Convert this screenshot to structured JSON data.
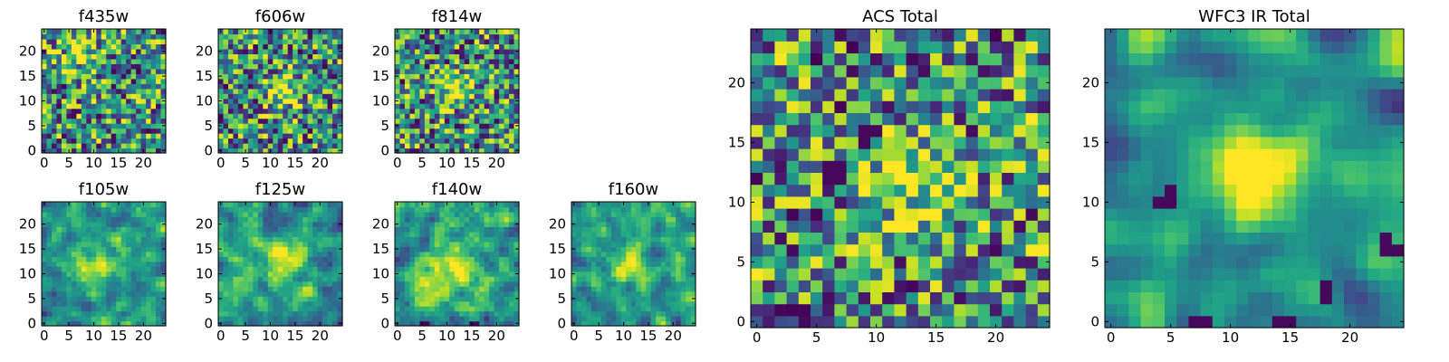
{
  "chart_data": [
    {
      "type": "heatmap",
      "title": "f435w",
      "grid": [
        25,
        25
      ],
      "colormap": "viridis",
      "seed": 11,
      "smooth": 0,
      "blob": {
        "cx": 8,
        "cy": 19,
        "amp": 0.25,
        "sigma": 3
      },
      "darkSpots": [],
      "xticks": [
        "0",
        "5",
        "10",
        "15",
        "20"
      ],
      "yticks": [
        "0",
        "5",
        "10",
        "15",
        "20"
      ]
    },
    {
      "type": "heatmap",
      "title": "f606w",
      "grid": [
        25,
        25
      ],
      "colormap": "viridis",
      "seed": 23,
      "smooth": 0,
      "blob": {
        "cx": 12.5,
        "cy": 12,
        "amp": 0.55,
        "sigma": 2.2
      },
      "darkSpots": [],
      "xticks": [
        "0",
        "5",
        "10",
        "15",
        "20"
      ],
      "yticks": [
        "0",
        "5",
        "10",
        "15",
        "20"
      ]
    },
    {
      "type": "heatmap",
      "title": "f814w",
      "grid": [
        25,
        25
      ],
      "colormap": "viridis",
      "seed": 37,
      "smooth": 0,
      "blob": {
        "cx": 12,
        "cy": 12.5,
        "amp": 0.55,
        "sigma": 2.2
      },
      "darkSpots": [],
      "xticks": [
        "0",
        "5",
        "10",
        "15",
        "20"
      ],
      "yticks": [
        "0",
        "5",
        "10",
        "15",
        "20"
      ]
    },
    {
      "type": "heatmap",
      "title": "f105w",
      "grid": [
        25,
        25
      ],
      "colormap": "viridis",
      "seed": 41,
      "smooth": 1,
      "blob": {
        "cx": 11,
        "cy": 12,
        "amp": 0.35,
        "sigma": 4
      },
      "darkSpots": [],
      "xticks": [
        "0",
        "5",
        "10",
        "15",
        "20"
      ],
      "yticks": [
        "0",
        "5",
        "10",
        "15",
        "20"
      ]
    },
    {
      "type": "heatmap",
      "title": "f125w",
      "grid": [
        25,
        25
      ],
      "colormap": "viridis",
      "seed": 53,
      "smooth": 1,
      "blob": {
        "cx": 13,
        "cy": 12.5,
        "amp": 0.4,
        "sigma": 3
      },
      "darkSpots": [],
      "xticks": [
        "0",
        "5",
        "10",
        "15",
        "20"
      ],
      "yticks": [
        "0",
        "5",
        "10",
        "15",
        "20"
      ]
    },
    {
      "type": "heatmap",
      "title": "f140w",
      "grid": [
        25,
        25
      ],
      "colormap": "viridis",
      "seed": 67,
      "smooth": 1,
      "blob": {
        "cx": 10,
        "cy": 11,
        "amp": 0.4,
        "sigma": 4
      },
      "darkSpots": [
        [
          5,
          0
        ],
        [
          6,
          0
        ],
        [
          15,
          0
        ],
        [
          16,
          0
        ]
      ],
      "xticks": [
        "0",
        "5",
        "10",
        "15",
        "20"
      ],
      "yticks": [
        "0",
        "5",
        "10",
        "15",
        "20"
      ]
    },
    {
      "type": "heatmap",
      "title": "f160w",
      "grid": [
        25,
        25
      ],
      "colormap": "viridis",
      "seed": 79,
      "smooth": 1,
      "blob": {
        "cx": 11,
        "cy": 12,
        "amp": 0.45,
        "sigma": 2.5
      },
      "darkSpots": [],
      "xticks": [
        "0",
        "5",
        "10",
        "15",
        "20"
      ],
      "yticks": [
        "0",
        "5",
        "10",
        "15",
        "20"
      ]
    },
    {
      "type": "heatmap",
      "title": "ACS Total",
      "grid": [
        25,
        25
      ],
      "colormap": "viridis",
      "seed": 97,
      "smooth": 0,
      "blob": {
        "cx": 12.5,
        "cy": 12,
        "amp": 0.45,
        "sigma": 2.5
      },
      "darkSpots": [
        [
          9,
          16
        ],
        [
          10,
          16
        ],
        [
          9,
          15
        ],
        [
          6,
          13
        ],
        [
          7,
          13
        ],
        [
          6,
          12
        ],
        [
          7,
          12
        ]
      ],
      "xticks": [
        "0",
        "5",
        "10",
        "15",
        "20"
      ],
      "yticks": [
        "0",
        "5",
        "10",
        "15",
        "20"
      ]
    },
    {
      "type": "heatmap",
      "title": "WFC3 IR Total",
      "grid": [
        25,
        25
      ],
      "colormap": "viridis",
      "seed": 113,
      "smooth": 2,
      "blob": {
        "cx": 12,
        "cy": 12.5,
        "amp": 0.6,
        "sigma": 2.6
      },
      "darkSpots": [
        [
          5,
          11
        ],
        [
          5,
          10
        ],
        [
          4,
          10
        ],
        [
          7,
          0
        ],
        [
          8,
          0
        ],
        [
          14,
          0
        ],
        [
          15,
          0
        ],
        [
          18,
          2
        ],
        [
          18,
          3
        ],
        [
          23,
          6
        ],
        [
          24,
          6
        ],
        [
          23,
          7
        ]
      ],
      "xticks": [
        "0",
        "5",
        "10",
        "15",
        "20"
      ],
      "yticks": [
        "0",
        "5",
        "10",
        "15",
        "20"
      ]
    }
  ]
}
